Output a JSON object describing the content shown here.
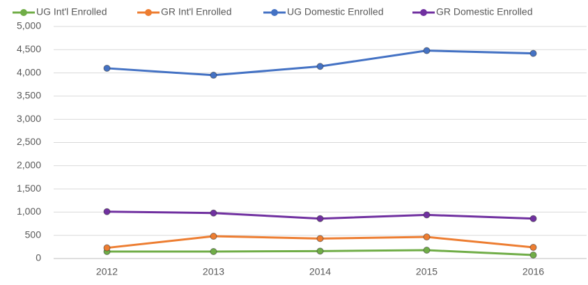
{
  "chart_data": {
    "type": "line",
    "categories": [
      "2012",
      "2013",
      "2014",
      "2015",
      "2016"
    ],
    "series": [
      {
        "name": "UG Int'l Enrolled",
        "color": "#70ad47",
        "values": [
          150,
          150,
          160,
          180,
          75
        ]
      },
      {
        "name": "GR Int'l Enrolled",
        "color": "#ed7d31",
        "values": [
          230,
          480,
          430,
          465,
          240
        ]
      },
      {
        "name": "UG Domestic Enrolled",
        "color": "#4472c4",
        "values": [
          4100,
          3950,
          4140,
          4480,
          4420
        ]
      },
      {
        "name": "GR Domestic Enrolled",
        "color": "#7030a0",
        "values": [
          1010,
          980,
          860,
          940,
          860
        ]
      }
    ],
    "ylim": [
      0,
      5000
    ],
    "yticks": [
      0,
      500,
      {
        "value": 1000,
        "label": "1,000"
      },
      {
        "value": 1500,
        "label": "1,500"
      },
      {
        "value": 2000,
        "label": "2,000"
      },
      {
        "value": 2500,
        "label": "2,500"
      },
      {
        "value": 3000,
        "label": "3,000"
      },
      {
        "value": 3500,
        "label": "3,500"
      },
      {
        "value": 4000,
        "label": "4,000"
      },
      {
        "value": 4500,
        "label": "4,500"
      },
      {
        "value": 5000,
        "label": "5,000"
      }
    ],
    "grid": true,
    "legend": "top"
  }
}
